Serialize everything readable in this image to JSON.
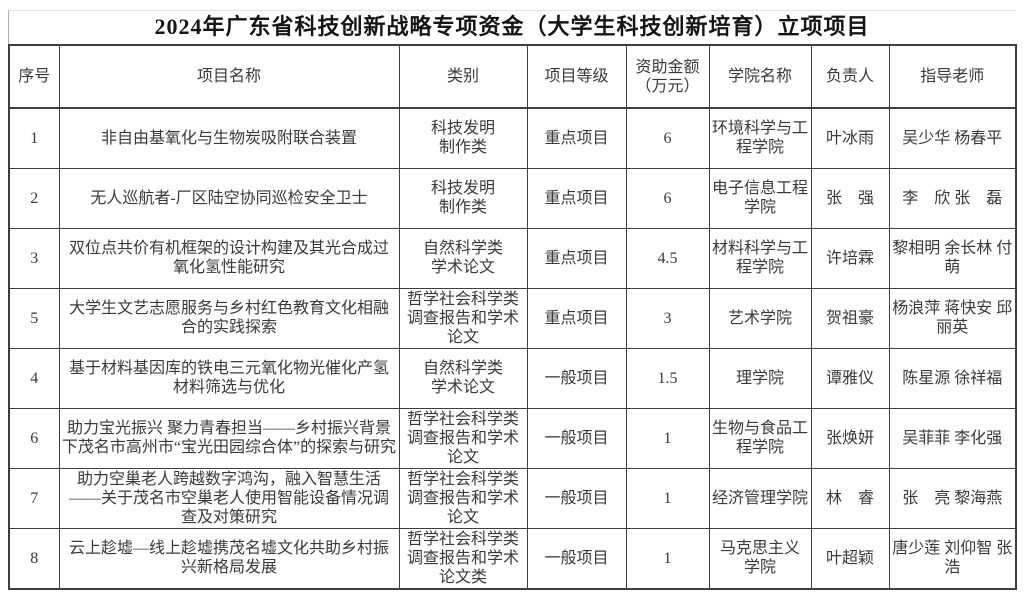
{
  "title": "2024年广东省科技创新战略专项资金（大学生科技创新培育）立项项目",
  "colors": {
    "background": "#ffffff",
    "text": "#3a3a3a",
    "table_border": "#3f3f3f",
    "comment_flag_green": "#217346"
  },
  "table": {
    "headers": [
      "序号",
      "项目名称",
      "类别",
      "项目等级",
      "资助金额\n（万元）",
      "学院名称",
      "负责人",
      "指导老师"
    ],
    "rows": [
      {
        "seq": "1",
        "name": "非自由基氧化与生物炭吸附联合装置",
        "category": "科技发明\n制作类",
        "level": "重点项目",
        "amount": "6",
        "college": "环境科学与工\n程学院",
        "leader": "叶冰雨",
        "advisor": "吴少华 杨春平"
      },
      {
        "seq": "2",
        "name": "无人巡航者-厂区陆空协同巡检安全卫士",
        "category": "科技发明\n制作类",
        "level": "重点项目",
        "amount": "6",
        "college": "电子信息工程\n学院",
        "leader": "张　强",
        "advisor": "李　欣 张　磊"
      },
      {
        "seq": "3",
        "name": "双位点共价有机框架的设计构建及其光合成过氧化氢性能研究",
        "category": "自然科学类\n学术论文",
        "level": "重点项目",
        "amount": "4.5",
        "college": "材料科学与工\n程学院",
        "leader": "许培霖",
        "advisor": "黎相明 余长林 付　萌"
      },
      {
        "seq": "5",
        "name": "大学生文艺志愿服务与乡村红色教育文化相融合的实践探索",
        "category": "哲学社会科学类\n调查报告和学术\n论文",
        "level": "重点项目",
        "amount": "3",
        "college": "艺术学院",
        "leader": "贺祖豪",
        "advisor": "杨浪萍 蒋快安 邱丽英"
      },
      {
        "seq": "4",
        "name": "基于材料基因库的铁电三元氧化物光催化产氢材料筛选与优化",
        "category": "自然科学类\n学术论文",
        "level": "一般项目",
        "amount": "1.5",
        "college": "理学院",
        "leader": "谭雅仪",
        "advisor": "陈星源 徐祥福"
      },
      {
        "seq": "6",
        "name": "助力宝光振兴 聚力青春担当——乡村振兴背景下茂名市高州市“宝光田园综合体”的探索与研究",
        "category": "哲学社会科学类\n调查报告和学术\n论文",
        "level": "一般项目",
        "amount": "1",
        "college": "生物与食品工\n程学院",
        "leader": "张焕妍",
        "advisor": "吴菲菲 李化强"
      },
      {
        "seq": "7",
        "name": "助力空巢老人跨越数字鸿沟，融入智慧生活——关于茂名市空巢老人使用智能设备情况调查及对策研究",
        "category": "哲学社会科学类\n调查报告和学术\n论文",
        "level": "一般项目",
        "amount": "1",
        "college": "经济管理学院",
        "leader": "林　睿",
        "advisor": "张　亮 黎海燕"
      },
      {
        "seq": "8",
        "name": "云上趁墟—线上趁墟携茂名墟文化共助乡村振兴新格局发展",
        "category": "哲学社会科学类\n调查报告和学术\n论文类",
        "level": "一般项目",
        "amount": "1",
        "college": "马克思主义\n学院",
        "leader": "叶超颖",
        "advisor": "唐少莲 刘仰智 张浩"
      }
    ],
    "comment_flag": {
      "row_index": 7,
      "field": "leader"
    }
  }
}
